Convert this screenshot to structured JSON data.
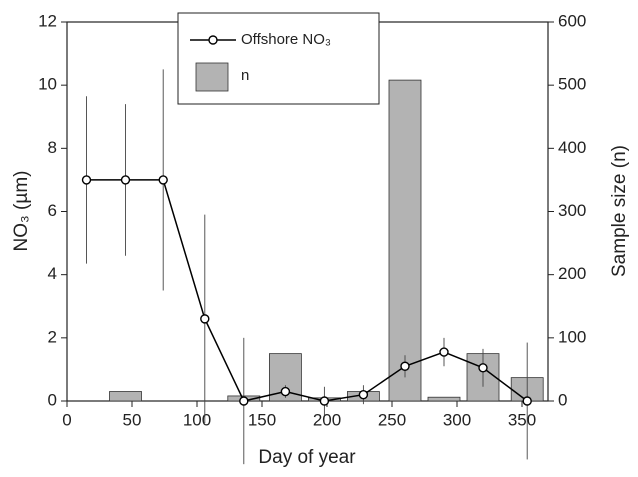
{
  "chart_data": {
    "type": "line",
    "x_label": "Day of year",
    "y_label": "NO₃ (µm)",
    "y2_label": "Sample size (n)",
    "xlim": [
      0,
      370
    ],
    "xticks": [
      0,
      50,
      100,
      150,
      200,
      250,
      300,
      350
    ],
    "ylim": [
      0,
      12
    ],
    "yticks": [
      0,
      2,
      4,
      6,
      8,
      10,
      12
    ],
    "y2lim": [
      0,
      600
    ],
    "y2ticks": [
      0,
      100,
      200,
      300,
      400,
      500,
      600
    ],
    "legend": "top-left",
    "series": [
      {
        "name": "n",
        "type": "bar",
        "axis": "y2",
        "color": "#b3b3b3",
        "x": [
          45,
          136,
          168,
          198,
          228,
          260,
          290,
          320,
          354
        ],
        "values": [
          15,
          8,
          75,
          5,
          15,
          508,
          6,
          75,
          37
        ]
      },
      {
        "name": "Offshore NO₃",
        "type": "line",
        "color": "#000000",
        "x": [
          15,
          45,
          74,
          106,
          136,
          168,
          198,
          228,
          260,
          290,
          320,
          354
        ],
        "values": [
          7,
          7,
          7,
          2.6,
          0,
          0.3,
          0,
          0.2,
          1.1,
          1.55,
          1.05,
          0
        ],
        "errors": [
          2.65,
          2.4,
          3.5,
          3.3,
          2,
          0.2,
          0.45,
          0.3,
          0.35,
          0.45,
          0.6,
          1.85
        ]
      }
    ]
  }
}
